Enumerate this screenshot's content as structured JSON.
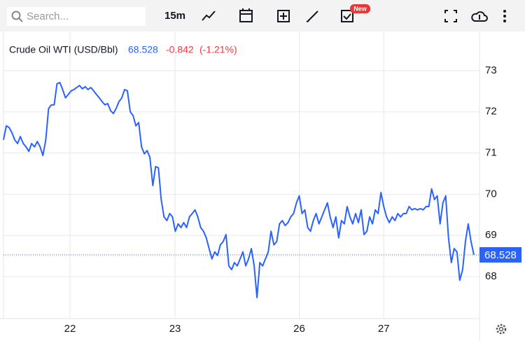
{
  "toolbar": {
    "search_placeholder": "Search...",
    "interval": "15m",
    "badge": "New"
  },
  "chart_data": {
    "type": "line",
    "title": "Crude Oil WTI (USD/Bbl)",
    "last_price": 68.528,
    "change": -0.842,
    "change_percent_label": "(-1.21%)",
    "series": [
      {
        "name": "Crude Oil WTI",
        "color": "#2962ff",
        "values": [
          71.32,
          71.66,
          71.62,
          71.49,
          71.32,
          71.23,
          71.4,
          71.23,
          71.15,
          71.04,
          71.23,
          71.15,
          71.28,
          71.15,
          70.94,
          71.32,
          72.08,
          72.17,
          72.17,
          72.68,
          72.71,
          72.54,
          72.34,
          72.42,
          72.51,
          72.54,
          72.59,
          72.64,
          72.56,
          72.61,
          72.54,
          72.59,
          72.51,
          72.42,
          72.34,
          72.25,
          72.17,
          72.2,
          72.03,
          71.96,
          72.08,
          72.25,
          72.34,
          72.54,
          72.51,
          72.0,
          71.91,
          71.66,
          71.74,
          71.15,
          70.98,
          71.06,
          70.89,
          70.21,
          70.67,
          70.64,
          69.87,
          69.45,
          69.36,
          69.53,
          69.45,
          69.1,
          69.28,
          69.19,
          69.31,
          69.19,
          69.45,
          69.53,
          69.62,
          69.45,
          69.19,
          69.1,
          68.94,
          68.68,
          68.43,
          68.6,
          68.51,
          68.77,
          68.85,
          69.02,
          68.26,
          68.17,
          68.34,
          68.26,
          68.43,
          68.6,
          68.26,
          68.43,
          68.68,
          68.26,
          67.49,
          68.34,
          68.26,
          68.43,
          68.6,
          69.1,
          68.77,
          68.85,
          69.28,
          69.36,
          69.24,
          69.31,
          69.45,
          69.53,
          69.79,
          69.96,
          69.53,
          69.62,
          69.19,
          69.1,
          69.36,
          69.53,
          69.28,
          69.45,
          69.62,
          69.79,
          69.45,
          69.19,
          69.45,
          68.94,
          69.36,
          69.28,
          69.7,
          69.45,
          69.28,
          69.53,
          69.31,
          69.62,
          69.02,
          69.1,
          69.45,
          69.28,
          69.62,
          69.53,
          70.04,
          69.7,
          69.45,
          69.31,
          69.45,
          69.36,
          69.53,
          69.45,
          69.53,
          69.53,
          69.7,
          69.62,
          69.65,
          69.62,
          69.65,
          69.62,
          69.7,
          69.7,
          70.13,
          69.87,
          69.96,
          69.28,
          69.79,
          69.96,
          68.94,
          68.34,
          68.68,
          68.6,
          67.91,
          68.17,
          68.85,
          69.28,
          68.85,
          68.528
        ]
      }
    ],
    "xlim": [
      0,
      169
    ],
    "xticks": [
      {
        "value": 23.6,
        "label": "22"
      },
      {
        "value": 60.9,
        "label": "23"
      },
      {
        "value": 105,
        "label": "26"
      },
      {
        "value": 135,
        "label": "27"
      }
    ],
    "ylim": [
      66.98,
      73.95
    ],
    "yticks": [
      68,
      69,
      70,
      71,
      72,
      73
    ],
    "grid": true
  }
}
